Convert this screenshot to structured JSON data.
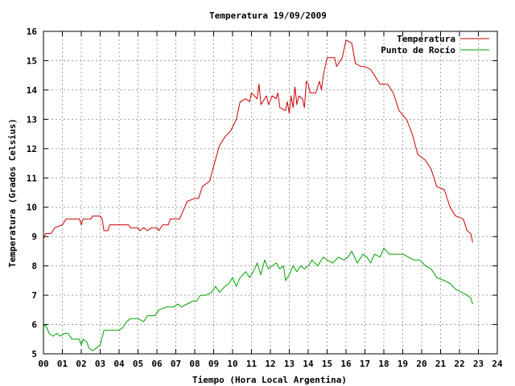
{
  "chart_data": {
    "type": "line",
    "title": "Temperatura 19/09/2009",
    "xlabel": "Tiempo (Hora Local Argentina)",
    "ylabel": "Temperatura (Grados Celsius)",
    "xlim": [
      0,
      24
    ],
    "ylim": [
      5,
      16
    ],
    "xticks": [
      "00",
      "01",
      "02",
      "03",
      "04",
      "05",
      "06",
      "07",
      "08",
      "09",
      "10",
      "11",
      "12",
      "13",
      "14",
      "15",
      "16",
      "17",
      "18",
      "19",
      "20",
      "21",
      "22",
      "23",
      "24"
    ],
    "yticks": [
      "5",
      "6",
      "7",
      "8",
      "9",
      "10",
      "11",
      "12",
      "13",
      "14",
      "15",
      "16"
    ],
    "grid": true,
    "legend_position": "top-right",
    "series": [
      {
        "name": "Temperatura",
        "color": "#cc0000",
        "points": [
          [
            0.0,
            8.9
          ],
          [
            0.1,
            9.1
          ],
          [
            0.4,
            9.1
          ],
          [
            0.6,
            9.3
          ],
          [
            1.0,
            9.4
          ],
          [
            1.2,
            9.6
          ],
          [
            1.9,
            9.6
          ],
          [
            2.0,
            9.4
          ],
          [
            2.1,
            9.6
          ],
          [
            2.5,
            9.6
          ],
          [
            2.6,
            9.7
          ],
          [
            3.0,
            9.7
          ],
          [
            3.1,
            9.6
          ],
          [
            3.2,
            9.2
          ],
          [
            3.4,
            9.2
          ],
          [
            3.5,
            9.4
          ],
          [
            4.0,
            9.4
          ],
          [
            4.5,
            9.4
          ],
          [
            4.6,
            9.3
          ],
          [
            5.0,
            9.3
          ],
          [
            5.1,
            9.2
          ],
          [
            5.3,
            9.3
          ],
          [
            5.5,
            9.2
          ],
          [
            5.7,
            9.3
          ],
          [
            6.0,
            9.3
          ],
          [
            6.1,
            9.2
          ],
          [
            6.3,
            9.4
          ],
          [
            6.6,
            9.4
          ],
          [
            6.7,
            9.6
          ],
          [
            7.2,
            9.6
          ],
          [
            7.4,
            9.9
          ],
          [
            7.6,
            10.2
          ],
          [
            8.0,
            10.3
          ],
          [
            8.2,
            10.3
          ],
          [
            8.4,
            10.7
          ],
          [
            8.8,
            10.9
          ],
          [
            9.0,
            11.4
          ],
          [
            9.3,
            12.1
          ],
          [
            9.6,
            12.4
          ],
          [
            9.9,
            12.6
          ],
          [
            10.2,
            13.0
          ],
          [
            10.4,
            13.6
          ],
          [
            10.7,
            13.7
          ],
          [
            10.9,
            13.6
          ],
          [
            11.0,
            13.9
          ],
          [
            11.3,
            13.7
          ],
          [
            11.4,
            14.2
          ],
          [
            11.5,
            13.5
          ],
          [
            11.7,
            13.7
          ],
          [
            11.8,
            13.8
          ],
          [
            11.9,
            13.5
          ],
          [
            12.1,
            13.8
          ],
          [
            12.3,
            13.7
          ],
          [
            12.4,
            13.9
          ],
          [
            12.5,
            13.4
          ],
          [
            12.8,
            13.3
          ],
          [
            12.9,
            13.6
          ],
          [
            13.0,
            13.2
          ],
          [
            13.1,
            13.8
          ],
          [
            13.2,
            13.4
          ],
          [
            13.3,
            14.1
          ],
          [
            13.4,
            13.5
          ],
          [
            13.5,
            13.8
          ],
          [
            13.7,
            13.7
          ],
          [
            13.8,
            13.4
          ],
          [
            13.9,
            14.3
          ],
          [
            14.0,
            14.2
          ],
          [
            14.1,
            13.9
          ],
          [
            14.4,
            13.9
          ],
          [
            14.6,
            14.3
          ],
          [
            14.7,
            14.0
          ],
          [
            14.8,
            14.5
          ],
          [
            15.0,
            15.1
          ],
          [
            15.4,
            15.1
          ],
          [
            15.5,
            14.8
          ],
          [
            15.8,
            15.1
          ],
          [
            16.0,
            15.7
          ],
          [
            16.3,
            15.6
          ],
          [
            16.5,
            14.9
          ],
          [
            16.8,
            14.8
          ],
          [
            17.0,
            14.8
          ],
          [
            17.3,
            14.7
          ],
          [
            17.5,
            14.5
          ],
          [
            17.8,
            14.2
          ],
          [
            18.2,
            14.2
          ],
          [
            18.5,
            13.9
          ],
          [
            18.8,
            13.3
          ],
          [
            19.2,
            13.0
          ],
          [
            19.5,
            12.5
          ],
          [
            19.8,
            11.8
          ],
          [
            20.2,
            11.6
          ],
          [
            20.5,
            11.3
          ],
          [
            20.8,
            10.7
          ],
          [
            21.2,
            10.6
          ],
          [
            21.5,
            10.0
          ],
          [
            21.8,
            9.7
          ],
          [
            22.2,
            9.6
          ],
          [
            22.4,
            9.2
          ],
          [
            22.6,
            9.1
          ],
          [
            22.7,
            8.8
          ]
        ]
      },
      {
        "name": "Punto de Rocío",
        "color": "#00a000",
        "points": [
          [
            0.0,
            5.9
          ],
          [
            0.1,
            6.0
          ],
          [
            0.3,
            5.7
          ],
          [
            0.5,
            5.6
          ],
          [
            0.7,
            5.7
          ],
          [
            0.9,
            5.6
          ],
          [
            1.1,
            5.7
          ],
          [
            1.3,
            5.7
          ],
          [
            1.5,
            5.5
          ],
          [
            1.9,
            5.5
          ],
          [
            2.0,
            5.3
          ],
          [
            2.1,
            5.5
          ],
          [
            2.3,
            5.4
          ],
          [
            2.4,
            5.2
          ],
          [
            2.6,
            5.1
          ],
          [
            2.8,
            5.2
          ],
          [
            3.0,
            5.3
          ],
          [
            3.2,
            5.8
          ],
          [
            3.6,
            5.8
          ],
          [
            4.0,
            5.8
          ],
          [
            4.2,
            5.9
          ],
          [
            4.4,
            6.1
          ],
          [
            4.6,
            6.2
          ],
          [
            5.0,
            6.2
          ],
          [
            5.3,
            6.1
          ],
          [
            5.5,
            6.3
          ],
          [
            5.9,
            6.3
          ],
          [
            6.1,
            6.5
          ],
          [
            6.5,
            6.6
          ],
          [
            6.9,
            6.6
          ],
          [
            7.1,
            6.7
          ],
          [
            7.3,
            6.6
          ],
          [
            7.6,
            6.7
          ],
          [
            7.9,
            6.8
          ],
          [
            8.1,
            6.8
          ],
          [
            8.3,
            7.0
          ],
          [
            8.6,
            7.0
          ],
          [
            8.9,
            7.1
          ],
          [
            9.1,
            7.3
          ],
          [
            9.3,
            7.1
          ],
          [
            9.6,
            7.3
          ],
          [
            9.8,
            7.4
          ],
          [
            10.0,
            7.6
          ],
          [
            10.2,
            7.3
          ],
          [
            10.4,
            7.6
          ],
          [
            10.7,
            7.8
          ],
          [
            10.9,
            7.6
          ],
          [
            11.1,
            7.8
          ],
          [
            11.3,
            8.1
          ],
          [
            11.5,
            7.7
          ],
          [
            11.7,
            8.2
          ],
          [
            11.9,
            7.9
          ],
          [
            12.1,
            8.0
          ],
          [
            12.3,
            8.1
          ],
          [
            12.5,
            7.9
          ],
          [
            12.7,
            8.0
          ],
          [
            12.8,
            7.5
          ],
          [
            13.0,
            7.7
          ],
          [
            13.2,
            8.0
          ],
          [
            13.4,
            7.8
          ],
          [
            13.6,
            8.0
          ],
          [
            13.8,
            7.9
          ],
          [
            14.0,
            8.0
          ],
          [
            14.2,
            8.2
          ],
          [
            14.5,
            8.0
          ],
          [
            14.8,
            8.3
          ],
          [
            15.0,
            8.2
          ],
          [
            15.3,
            8.1
          ],
          [
            15.6,
            8.3
          ],
          [
            15.9,
            8.2
          ],
          [
            16.1,
            8.3
          ],
          [
            16.3,
            8.5
          ],
          [
            16.6,
            8.1
          ],
          [
            16.9,
            8.4
          ],
          [
            17.1,
            8.3
          ],
          [
            17.3,
            8.1
          ],
          [
            17.5,
            8.4
          ],
          [
            17.8,
            8.3
          ],
          [
            18.0,
            8.6
          ],
          [
            18.3,
            8.4
          ],
          [
            18.6,
            8.4
          ],
          [
            19.0,
            8.4
          ],
          [
            19.3,
            8.3
          ],
          [
            19.6,
            8.2
          ],
          [
            19.9,
            8.2
          ],
          [
            20.2,
            8.0
          ],
          [
            20.5,
            7.9
          ],
          [
            20.8,
            7.6
          ],
          [
            21.2,
            7.5
          ],
          [
            21.5,
            7.4
          ],
          [
            21.8,
            7.2
          ],
          [
            22.1,
            7.1
          ],
          [
            22.4,
            7.0
          ],
          [
            22.6,
            6.9
          ],
          [
            22.7,
            6.7
          ]
        ]
      }
    ]
  }
}
